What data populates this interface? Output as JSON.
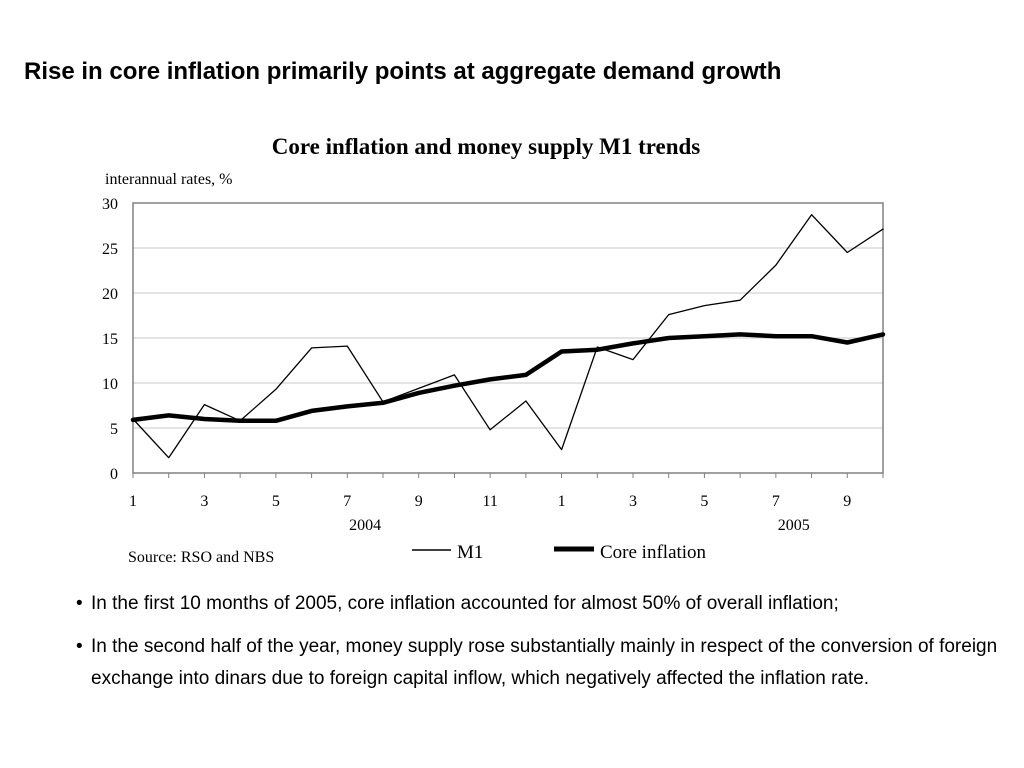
{
  "slide": {
    "title": "Rise in core inflation primarily points at aggregate demand growth",
    "bullets": [
      "In the first 10 months of 2005, core inflation accounted for almost 50% of overall inflation;",
      "In the second half of the year, money supply rose substantially mainly in respect of the conversion of foreign exchange into dinars due to foreign capital inflow, which negatively affected the inflation rate."
    ]
  },
  "chart_data": {
    "type": "line",
    "title": "Core inflation and money supply M1 trends",
    "ylabel": "interannual rates,  %",
    "source": "Source: RSO and NBS",
    "ylim": [
      0,
      30
    ],
    "yticks": [
      0,
      5,
      10,
      15,
      20,
      25,
      30
    ],
    "grid": true,
    "legend": "bottom",
    "x": [
      1,
      2,
      3,
      4,
      5,
      6,
      7,
      8,
      9,
      10,
      11,
      12,
      1,
      2,
      3,
      4,
      5,
      6,
      7,
      8,
      9,
      10
    ],
    "x_tick_labels": [
      "1",
      "",
      "3",
      "",
      "5",
      "",
      "7",
      "",
      "9",
      "",
      "11",
      "",
      "1",
      "",
      "3",
      "",
      "5",
      "",
      "7",
      "",
      "9",
      ""
    ],
    "year_labels": [
      {
        "label": "2004",
        "at_index": 6
      },
      {
        "label": "2005",
        "at_index": 18
      }
    ],
    "series": [
      {
        "name": "M1",
        "color": "#000000",
        "style": "thin",
        "values": [
          6.0,
          1.7,
          7.6,
          5.8,
          9.3,
          13.9,
          14.1,
          7.9,
          9.4,
          10.9,
          4.8,
          8.0,
          2.6,
          14.0,
          12.6,
          17.6,
          18.6,
          19.2,
          23.1,
          28.7,
          24.5,
          27.1
        ]
      },
      {
        "name": "Core inflation",
        "color": "#000000",
        "style": "thick",
        "values": [
          5.9,
          6.4,
          6.0,
          5.8,
          5.8,
          6.9,
          7.4,
          7.8,
          8.9,
          9.7,
          10.4,
          10.9,
          13.5,
          13.7,
          14.4,
          15.0,
          15.2,
          15.4,
          15.2,
          15.2,
          14.5,
          15.4
        ]
      }
    ]
  }
}
